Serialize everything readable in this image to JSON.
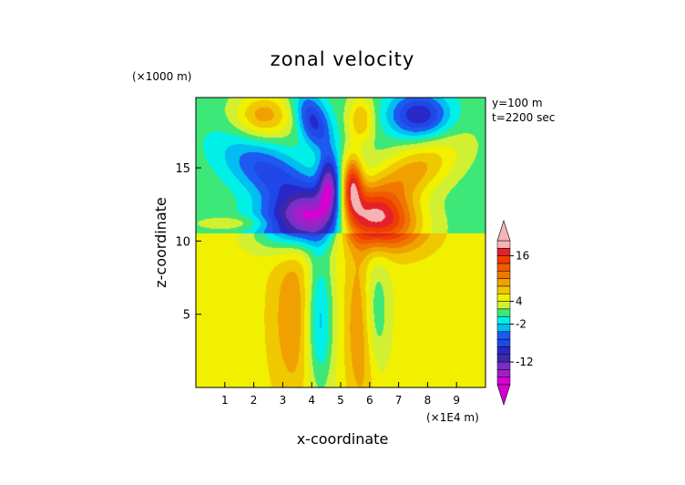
{
  "chart_data": {
    "type": "heatmap",
    "title": "zonal velocity",
    "xlabel": "x-coordinate",
    "ylabel": "z-coordinate",
    "x_unit": "(×1E4 m)",
    "y_unit": "(×1000 m)",
    "annotations": [
      "y=100 m",
      "t=2200 sec"
    ],
    "xlim": [
      0,
      10
    ],
    "ylim": [
      0,
      19.8
    ],
    "x_ticks": [
      "1",
      "2",
      "3",
      "4",
      "5",
      "6",
      "7",
      "8",
      "9"
    ],
    "y_ticks": [
      "5",
      "10",
      "15"
    ],
    "colorbar": {
      "labels": [
        {
          "text": "16",
          "value": 16
        },
        {
          "text": "4",
          "value": 4
        },
        {
          "text": "-2",
          "value": -2
        },
        {
          "text": "-12",
          "value": -12
        }
      ],
      "levels": [
        {
          "min": -18,
          "max": -16,
          "color": "#d700d0"
        },
        {
          "min": -16,
          "max": -14,
          "color": "#a020c8"
        },
        {
          "min": -14,
          "max": -12,
          "color": "#7830c8"
        },
        {
          "min": -12,
          "max": -10,
          "color": "#3c28a8"
        },
        {
          "min": -10,
          "max": -8,
          "color": "#2828c8"
        },
        {
          "min": -8,
          "max": -6,
          "color": "#2048e8"
        },
        {
          "min": -6,
          "max": -4,
          "color": "#1e5af0"
        },
        {
          "min": -4,
          "max": -2,
          "color": "#00bef0"
        },
        {
          "min": -2,
          "max": 0,
          "color": "#00f0e8"
        },
        {
          "min": 0,
          "max": 2,
          "color": "#3ee878"
        },
        {
          "min": 2,
          "max": 4,
          "color": "#d2f032"
        },
        {
          "min": 4,
          "max": 6,
          "color": "#f0f000"
        },
        {
          "min": 6,
          "max": 8,
          "color": "#f0c800"
        },
        {
          "min": 8,
          "max": 10,
          "color": "#f0a000"
        },
        {
          "min": 10,
          "max": 12,
          "color": "#f07800"
        },
        {
          "min": 12,
          "max": 14,
          "color": "#f05a00"
        },
        {
          "min": 14,
          "max": 16,
          "color": "#f03c00"
        },
        {
          "min": 16,
          "max": 18,
          "color": "#e6202a"
        },
        {
          "min": 18,
          "max": 20,
          "color": "#f5b4b4"
        }
      ],
      "extend": "both"
    },
    "field": {
      "description_of_structure": "anti-symmetric outflow dipole about x=5",
      "background": [
        {
          "x": [
            0,
            10
          ],
          "z": [
            0,
            10.5
          ],
          "u": 5
        },
        {
          "x": [
            0,
            10
          ],
          "z": [
            10.5,
            19.8
          ],
          "u": 1
        }
      ],
      "features": [
        {
          "x": 3.9,
          "z": 11.6,
          "rx": 1.45,
          "rz": 2.0,
          "amp": -18,
          "rot": -0.35
        },
        {
          "x": 6.1,
          "z": 11.6,
          "rx": 1.45,
          "rz": 2.0,
          "amp": 18,
          "rot": 0.35
        },
        {
          "x": 4.6,
          "z": 13.8,
          "rx": 0.35,
          "rz": 2.0,
          "amp": -14,
          "rot": 0
        },
        {
          "x": 5.4,
          "z": 13.8,
          "rx": 0.35,
          "rz": 2.0,
          "amp": 14,
          "rot": 0
        },
        {
          "x": 4.25,
          "z": 4.6,
          "rx": 0.5,
          "rz": 5.2,
          "amp": -9,
          "rot": 0
        },
        {
          "x": 5.75,
          "z": 4.6,
          "rx": 0.5,
          "rz": 5.2,
          "amp": 9,
          "rot": 0
        },
        {
          "x": 6.05,
          "z": 5.2,
          "rx": 0.55,
          "rz": 4.2,
          "amp": -8,
          "rot": 0
        },
        {
          "x": 3.45,
          "z": 4.8,
          "rx": 0.85,
          "rz": 5.8,
          "amp": 5,
          "rot": 0
        },
        {
          "x": 2.6,
          "z": 14.6,
          "rx": 1.2,
          "rz": 2.6,
          "amp": -8,
          "rot": 0.5
        },
        {
          "x": 7.4,
          "z": 14.6,
          "rx": 1.2,
          "rz": 2.6,
          "amp": 8,
          "rot": -0.5
        },
        {
          "x": 4.05,
          "z": 18.2,
          "rx": 0.55,
          "rz": 1.9,
          "amp": -10,
          "rot": 0.15
        },
        {
          "x": 2.35,
          "z": 18.6,
          "rx": 1.0,
          "rz": 1.5,
          "amp": 8,
          "rot": 0
        },
        {
          "x": 7.7,
          "z": 18.6,
          "rx": 1.0,
          "rz": 1.5,
          "amp": -11,
          "rot": 0
        },
        {
          "x": 5.7,
          "z": 18.3,
          "rx": 0.45,
          "rz": 1.6,
          "amp": 7,
          "rot": 0
        },
        {
          "x": 1.6,
          "z": 11.2,
          "rx": 1.5,
          "rz": 0.5,
          "amp": 3,
          "rot": 0
        }
      ]
    }
  }
}
